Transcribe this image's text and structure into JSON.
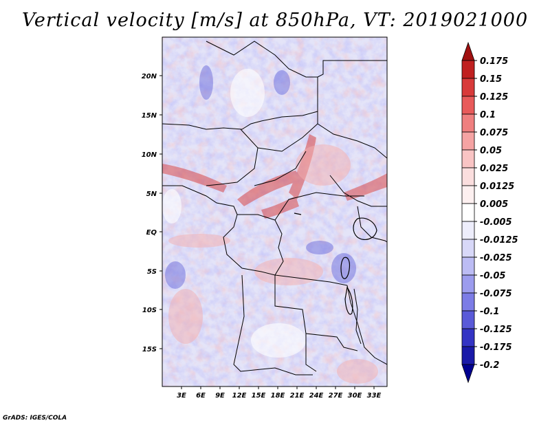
{
  "title": "Vertical velocity [m/s] at 850hPa, VT: 2019021000",
  "credit": "GrADS: IGES/COLA",
  "map": {
    "lat_labels": [
      "20N",
      "15N",
      "10N",
      "5N",
      "EQ",
      "5S",
      "10S",
      "15S"
    ],
    "lon_labels": [
      "3E",
      "6E",
      "9E",
      "12E",
      "15E",
      "18E",
      "21E",
      "24E",
      "27E",
      "30E",
      "33E"
    ]
  },
  "colorbar": {
    "labels": [
      "0.175",
      "0.15",
      "0.125",
      "0.1",
      "0.075",
      "0.05",
      "0.025",
      "0.0125",
      "0.005",
      "-0.005",
      "-0.0125",
      "-0.025",
      "-0.05",
      "-0.075",
      "-0.1",
      "-0.125",
      "-0.175",
      "-0.2"
    ],
    "colors": [
      "#a01010",
      "#c02020",
      "#d83a3a",
      "#e85a5a",
      "#ef7f7f",
      "#f5a3a3",
      "#f9c4c4",
      "#fbdede",
      "#fdf0f0",
      "#ffffff",
      "#eeeefc",
      "#d8d8f8",
      "#bcbcf4",
      "#9c9cee",
      "#7c7ce6",
      "#5a5ad8",
      "#3434c4",
      "#1a1aa8",
      "#000090"
    ]
  }
}
